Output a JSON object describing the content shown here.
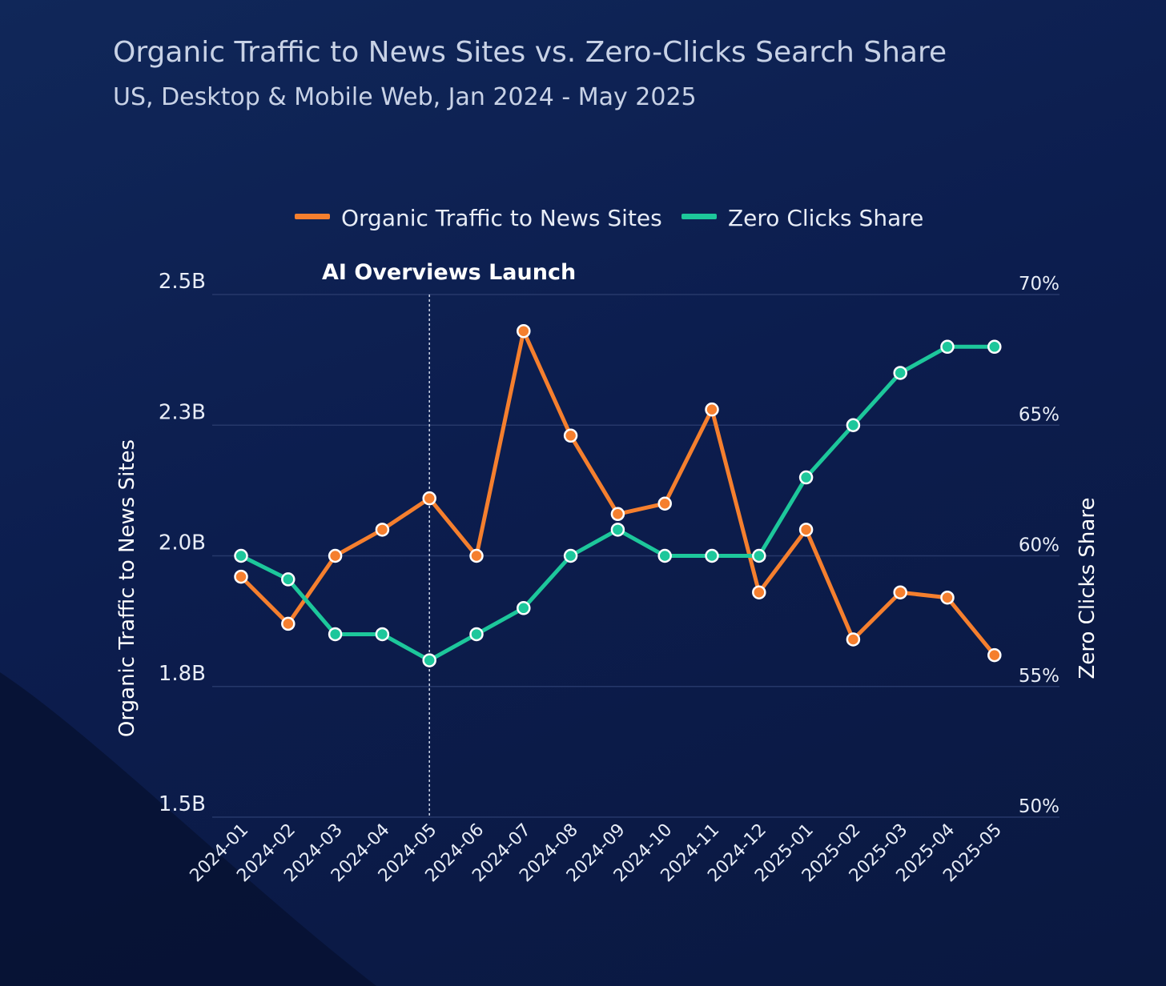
{
  "chart_data": {
    "type": "line",
    "title": "Organic Traffic to News Sites vs. Zero-Clicks Search Share",
    "subtitle": "US, Desktop & Mobile Web, Jan 2024 - May 2025",
    "categories": [
      "2024-01",
      "2024-02",
      "2024-03",
      "2024-04",
      "2024-05",
      "2024-06",
      "2024-07",
      "2024-08",
      "2024-09",
      "2024-10",
      "2024-11",
      "2024-12",
      "2025-01",
      "2025-02",
      "2025-03",
      "2025-04",
      "2025-05"
    ],
    "series": [
      {
        "name": "Organic Traffic to News Sites",
        "axis": "left",
        "color": "#f57f2e",
        "values": [
          1.96,
          1.87,
          2.0,
          2.05,
          2.11,
          2.0,
          2.43,
          2.23,
          2.08,
          2.1,
          2.28,
          1.93,
          2.05,
          1.84,
          1.93,
          1.92,
          1.81
        ]
      },
      {
        "name": "Zero Clicks Share",
        "axis": "right",
        "color": "#1dc79b",
        "values": [
          60.0,
          59.1,
          57.0,
          57.0,
          56.0,
          57.0,
          58.0,
          60.0,
          61.0,
          60.0,
          60.0,
          60.0,
          63.0,
          65.0,
          67.0,
          68.0,
          68.0
        ]
      }
    ],
    "y_left": {
      "label": "Organic Traffic to News Sites",
      "range": [
        1.5,
        2.5
      ],
      "ticks": [
        1.5,
        1.75,
        2.0,
        2.25,
        2.5
      ],
      "tick_labels": [
        "1.5B",
        "1.8B",
        "2.0B",
        "2.3B",
        "2.5B"
      ]
    },
    "y_right": {
      "label": "Zero Clicks Share",
      "range": [
        50,
        70
      ],
      "ticks": [
        50,
        55,
        60,
        65,
        70
      ],
      "tick_labels": [
        "50%",
        "55%",
        "60%",
        "65%",
        "70%"
      ]
    },
    "annotation": {
      "text": "AI Overviews Launch",
      "at_category": "2024-05"
    },
    "grid": true,
    "legend": "top-center"
  }
}
